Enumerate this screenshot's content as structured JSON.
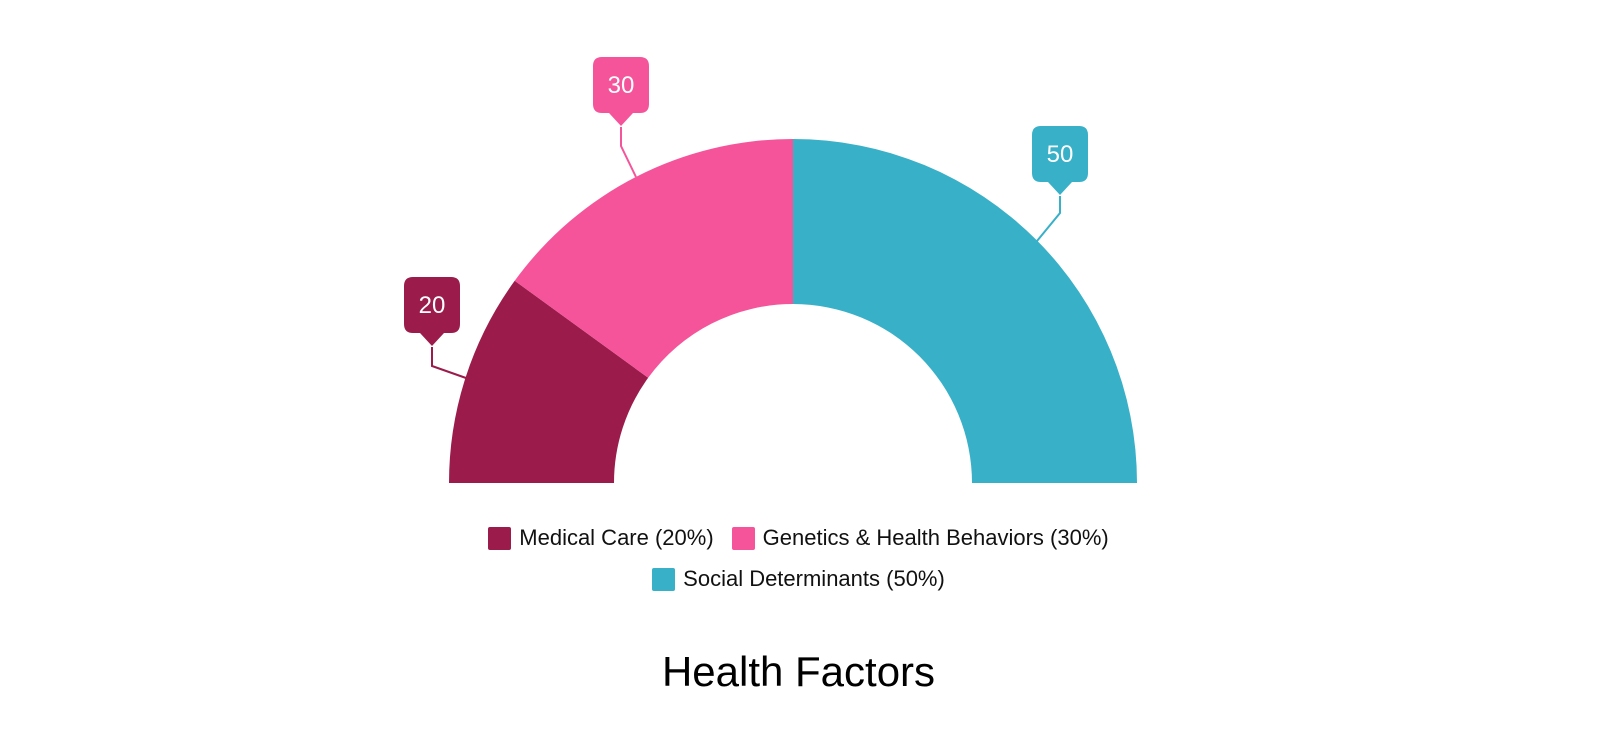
{
  "chart_data": {
    "type": "pie",
    "subtype": "semi-donut",
    "title": "Health Factors",
    "categories": [
      "Medical Care",
      "Genetics & Health Behaviors",
      "Social Determinants"
    ],
    "values": [
      20,
      30,
      50
    ],
    "colors": [
      "#9b1c4b",
      "#f5549a",
      "#38b0c8"
    ],
    "data_labels": [
      "20",
      "30",
      "50"
    ],
    "legend": {
      "position": "bottom",
      "entries": [
        "Medical Care (20%)",
        "Genetics & Health Behaviors (30%)",
        "Social Determinants (50%)"
      ]
    }
  },
  "legend_items": [
    {
      "label": "Medical Care (20%)",
      "color": "#9b1c4b"
    },
    {
      "label": "Genetics & Health Behaviors (30%)",
      "color": "#f5549a"
    },
    {
      "label": "Social Determinants (50%)",
      "color": "#38b0c8"
    }
  ],
  "title": "Health Factors"
}
